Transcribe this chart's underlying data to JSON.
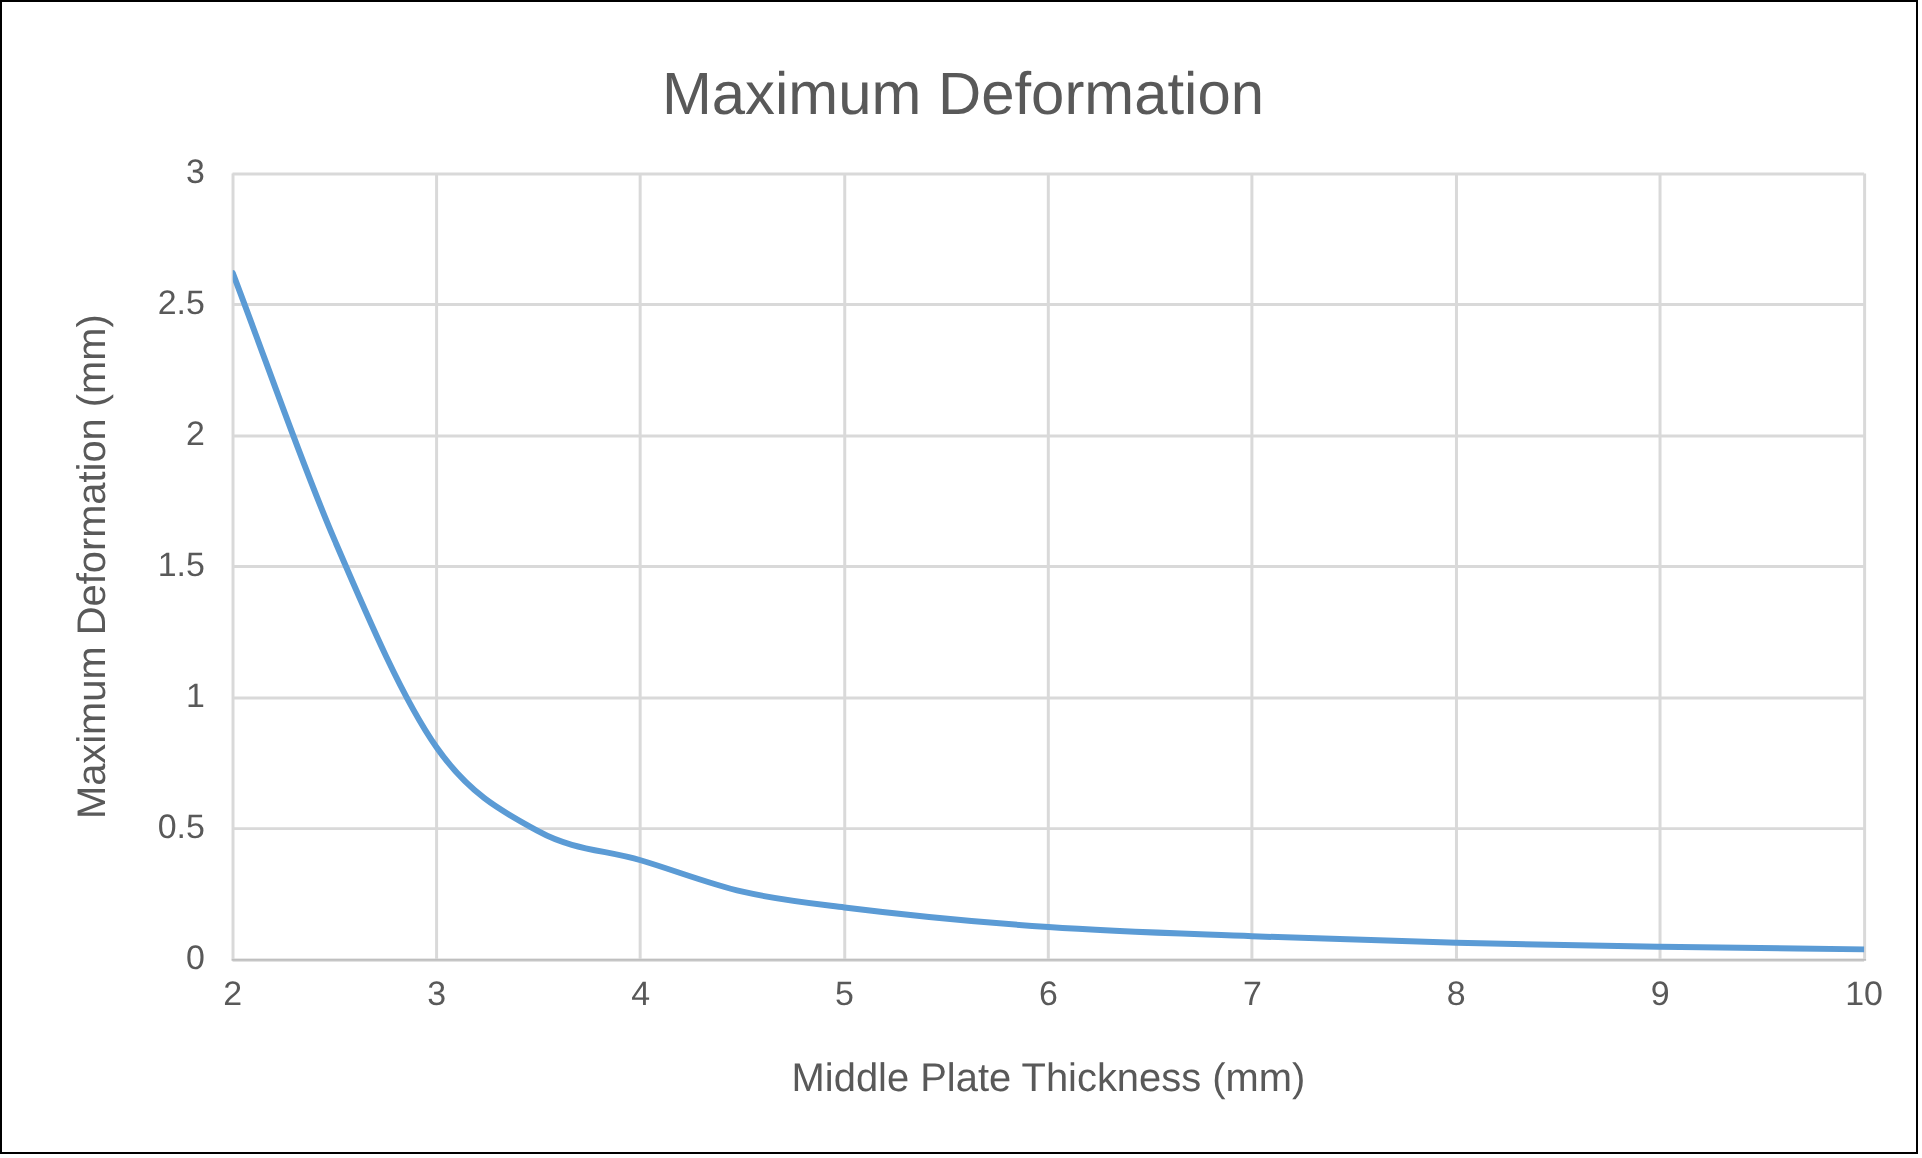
{
  "chart_data": {
    "type": "line",
    "title": "Maximum Deformation",
    "xlabel": "Middle Plate Thickness (mm)",
    "ylabel": "Maximum Deformation (mm)",
    "x": [
      2,
      2.5,
      3,
      3.5,
      4,
      4.5,
      5,
      6,
      7,
      8,
      9,
      10
    ],
    "series": [
      {
        "color": "#5b9bd5",
        "values": [
          2.62,
          1.6,
          0.81,
          0.49,
          0.38,
          0.26,
          0.2,
          0.125,
          0.09,
          0.065,
          0.05,
          0.04
        ]
      }
    ],
    "xlim": [
      2,
      10
    ],
    "xticks": [
      2,
      3,
      4,
      5,
      6,
      7,
      8,
      9,
      10
    ],
    "ylim": [
      0,
      3
    ],
    "yticks": [
      0,
      {
        "value": 0.5,
        "label": "0.5"
      },
      1,
      {
        "value": 1.5,
        "label": "1.5"
      },
      2,
      {
        "value": 2.5,
        "label": "2.5"
      },
      3
    ],
    "grid": true,
    "legend": false,
    "marker": "none",
    "line_style": "solid"
  }
}
